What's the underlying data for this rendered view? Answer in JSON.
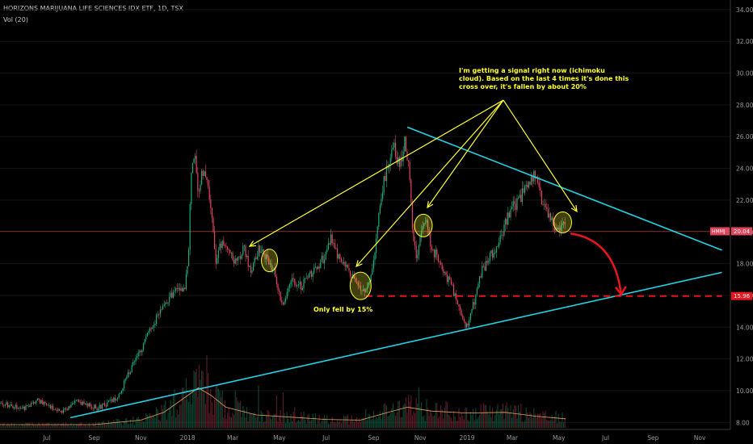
{
  "header": {
    "title": "HORIZONS MARIJUANA LIFE SCIENCES IDX ETF, 1D, TSX",
    "volume_label": "Vol (20)"
  },
  "colors": {
    "background": "#000000",
    "up_candle": "#1faa7a",
    "down_candle": "#e0455e",
    "trendline": "#22d3e6",
    "annotation": "#ffff33",
    "target_line": "#e8141e",
    "current_price_line": "#9c2a2a",
    "volume_ma": "#f0a060"
  },
  "chart_data": {
    "type": "candlestick",
    "symbol": "HMMJ",
    "current_price": 20.04,
    "target_price": 15.96,
    "ylim": [
      7.2,
      34.3
    ],
    "y_ticks": [
      8,
      10,
      12,
      14,
      16,
      18,
      20,
      22,
      24,
      26,
      28,
      30,
      32,
      34
    ],
    "x_ticks": [
      "Jul",
      "Sep",
      "Nov",
      "2018",
      "Mar",
      "May",
      "Jul",
      "Sep",
      "Nov",
      "2019",
      "Mar",
      "May",
      "Jul",
      "Sep",
      "Nov"
    ],
    "price_path": [
      [
        "2017-05-01",
        9.2
      ],
      [
        "2017-06-01",
        8.9
      ],
      [
        "2017-06-20",
        9.4
      ],
      [
        "2017-07-20",
        8.7
      ],
      [
        "2017-08-10",
        9.3
      ],
      [
        "2017-09-05",
        8.9
      ],
      [
        "2017-10-01",
        9.5
      ],
      [
        "2017-10-15",
        11.0
      ],
      [
        "2017-11-01",
        12.6
      ],
      [
        "2017-11-15",
        14.0
      ],
      [
        "2017-11-30",
        15.5
      ],
      [
        "2017-12-10",
        16.0
      ],
      [
        "2017-12-20",
        16.5
      ],
      [
        "2017-12-28",
        16.4
      ],
      [
        "2018-01-02",
        18.5
      ],
      [
        "2018-01-06",
        24.0
      ],
      [
        "2018-01-10",
        25.2
      ],
      [
        "2018-01-15",
        22.0
      ],
      [
        "2018-01-20",
        23.8
      ],
      [
        "2018-01-25",
        23.8
      ],
      [
        "2018-02-01",
        21.0
      ],
      [
        "2018-02-07",
        18.0
      ],
      [
        "2018-02-15",
        19.5
      ],
      [
        "2018-02-25",
        19.0
      ],
      [
        "2018-03-05",
        18.0
      ],
      [
        "2018-03-15",
        19.0
      ],
      [
        "2018-03-25",
        17.5
      ],
      [
        "2018-04-01",
        18.7
      ],
      [
        "2018-04-07",
        19.0
      ],
      [
        "2018-04-15",
        18.2
      ],
      [
        "2018-04-25",
        17.5
      ],
      [
        "2018-05-01",
        16.0
      ],
      [
        "2018-05-05",
        15.2
      ],
      [
        "2018-05-15",
        17.0
      ],
      [
        "2018-05-30",
        16.6
      ],
      [
        "2018-06-15",
        17.6
      ],
      [
        "2018-06-30",
        18.5
      ],
      [
        "2018-07-08",
        19.7
      ],
      [
        "2018-07-20",
        18.0
      ],
      [
        "2018-08-01",
        17.5
      ],
      [
        "2018-08-10",
        16.8
      ],
      [
        "2018-08-20",
        16.0
      ],
      [
        "2018-08-25",
        16.6
      ],
      [
        "2018-09-01",
        18.0
      ],
      [
        "2018-09-10",
        22.0
      ],
      [
        "2018-09-20",
        24.5
      ],
      [
        "2018-09-28",
        25.3
      ],
      [
        "2018-10-05",
        24.0
      ],
      [
        "2018-10-12",
        25.8
      ],
      [
        "2018-10-17",
        24.2
      ],
      [
        "2018-10-22",
        20.0
      ],
      [
        "2018-10-27",
        18.2
      ],
      [
        "2018-11-03",
        20.4
      ],
      [
        "2018-11-08",
        21.0
      ],
      [
        "2018-11-15",
        19.0
      ],
      [
        "2018-11-25",
        18.3
      ],
      [
        "2018-12-05",
        17.2
      ],
      [
        "2018-12-15",
        16.2
      ],
      [
        "2018-12-25",
        14.5
      ],
      [
        "2018-12-31",
        14.0
      ],
      [
        "2019-01-10",
        15.5
      ],
      [
        "2019-01-20",
        17.5
      ],
      [
        "2019-01-31",
        18.4
      ],
      [
        "2019-02-10",
        19.2
      ],
      [
        "2019-02-20",
        20.5
      ],
      [
        "2019-03-01",
        21.5
      ],
      [
        "2019-03-10",
        22.0
      ],
      [
        "2019-03-20",
        23.0
      ],
      [
        "2019-03-30",
        23.5
      ],
      [
        "2019-04-05",
        22.6
      ],
      [
        "2019-04-12",
        21.5
      ],
      [
        "2019-04-20",
        20.8
      ],
      [
        "2019-04-27",
        20.3
      ],
      [
        "2019-05-05",
        20.5
      ],
      [
        "2019-05-10",
        20.0
      ]
    ],
    "volume_ma_path": [
      [
        "2017-05-01",
        0.5
      ],
      [
        "2017-09-01",
        0.5
      ],
      [
        "2017-11-01",
        1.2
      ],
      [
        "2017-12-01",
        2.4
      ],
      [
        "2018-01-01",
        5.0
      ],
      [
        "2018-01-15",
        6.2
      ],
      [
        "2018-02-01",
        5.0
      ],
      [
        "2018-02-20",
        3.2
      ],
      [
        "2018-04-01",
        2.0
      ],
      [
        "2018-07-01",
        1.3
      ],
      [
        "2018-08-15",
        1.2
      ],
      [
        "2018-09-20",
        2.4
      ],
      [
        "2018-10-15",
        3.2
      ],
      [
        "2018-11-15",
        2.6
      ],
      [
        "2019-01-01",
        2.3
      ],
      [
        "2019-02-20",
        2.4
      ],
      [
        "2019-04-01",
        1.8
      ],
      [
        "2019-05-10",
        1.4
      ]
    ],
    "trendlines": [
      {
        "name": "support",
        "start": [
          "2017-08-01",
          8.3
        ],
        "end": [
          "2019-11-30",
          17.45
        ]
      },
      {
        "name": "resistance",
        "start": [
          "2018-10-15",
          26.6
        ],
        "end": [
          "2019-11-30",
          18.85
        ]
      }
    ],
    "target_line": {
      "start": [
        "2018-08-22",
        15.96
      ],
      "end": [
        "2019-11-30",
        15.96
      ]
    },
    "forecast_arrow": {
      "start": [
        "2019-05-12",
        20.0
      ],
      "end": [
        "2019-07-15",
        15.96
      ]
    },
    "signal_circles": [
      {
        "date": "2018-04-18",
        "price": 18.2
      },
      {
        "date": "2018-08-15",
        "price": 16.6
      },
      {
        "date": "2018-11-05",
        "price": 20.4
      },
      {
        "date": "2019-05-06",
        "price": 20.6
      }
    ],
    "annotations": [
      {
        "id": "signal",
        "lines": [
          "I'm getting a signal right now (ichimoku",
          "cloud). Based on the last 4 times it's done this",
          "cross over, it's fallen by about 20%"
        ]
      },
      {
        "id": "only",
        "text": "Only fell by 15%"
      }
    ]
  }
}
